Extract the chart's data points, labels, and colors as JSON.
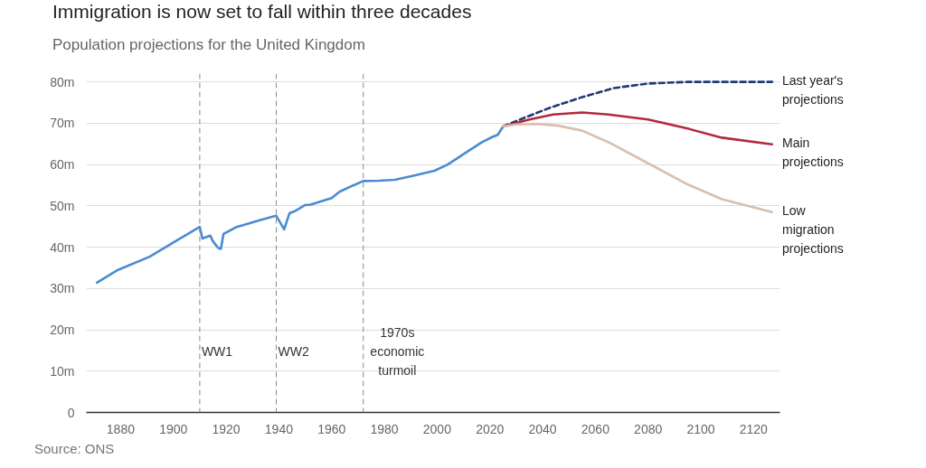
{
  "chart_data": {
    "type": "line",
    "title": "Immigration is now set to fall within three decades",
    "subtitle": "Population projections for the United Kingdom",
    "annotations": [
      "Source: ONS"
    ],
    "series": [
      {
        "color": "#4a8bd2",
        "x": [
          1871,
          1879,
          1891,
          1901,
          1910,
          1911,
          1914,
          1915,
          1917,
          1918,
          1919,
          1924,
          1929,
          1933,
          1939,
          1941,
          1942,
          1944,
          1946,
          1950,
          1952,
          1960,
          1963,
          1968,
          1972,
          1978,
          1984,
          1991,
          1999,
          2004,
          2010,
          2017,
          2021,
          2023,
          2025
        ],
        "values": [
          31.4,
          34.5,
          37.7,
          41.5,
          44.9,
          42.1,
          42.8,
          41.4,
          39.8,
          39.6,
          43.2,
          44.9,
          45.8,
          46.6,
          47.6,
          45.4,
          44.3,
          48.2,
          48.7,
          50.2,
          50.3,
          51.9,
          53.4,
          54.9,
          56.0,
          56.1,
          56.3,
          57.3,
          58.5,
          60.0,
          62.5,
          65.4,
          66.7,
          67.2,
          69.2
        ]
      },
      {
        "name": "Last year's projections",
        "color": "#1e3a78",
        "line_style": "dashed",
        "x": [
          2025,
          2033,
          2043,
          2055,
          2067,
          2080,
          2095,
          2127
        ],
        "values": [
          69.2,
          71.3,
          73.8,
          76.3,
          78.5,
          79.6,
          80.0,
          80.0
        ]
      },
      {
        "name": "Main projections",
        "color": "#b32a3c",
        "x": [
          2025,
          2035,
          2044,
          2055,
          2065,
          2080,
          2095,
          2108,
          2127
        ],
        "values": [
          69.2,
          70.9,
          72.1,
          72.6,
          72.1,
          70.9,
          68.7,
          66.5,
          64.9
        ]
      },
      {
        "name": "Low migration projections",
        "color": "#d9bfae",
        "x": [
          2025,
          2030,
          2038,
          2046,
          2055,
          2066,
          2080,
          2095,
          2108,
          2127
        ],
        "values": [
          69.2,
          69.7,
          69.8,
          69.4,
          68.2,
          65.1,
          60.3,
          55.2,
          51.6,
          48.5
        ]
      }
    ],
    "xlim": [
      1867,
      2130
    ],
    "xticks": [
      1880,
      1900,
      1920,
      1940,
      1960,
      1980,
      2000,
      2020,
      2040,
      2060,
      2080,
      2100,
      2120
    ],
    "ylim": [
      0,
      82
    ],
    "yticks": [
      0,
      {
        "value": 10,
        "label": "10m"
      },
      {
        "value": 20,
        "label": "20m"
      },
      {
        "value": 30,
        "label": "30m"
      },
      {
        "value": 40,
        "label": "40m"
      },
      {
        "value": 50,
        "label": "50m"
      },
      {
        "value": 60,
        "label": "60m"
      },
      {
        "value": 70,
        "label": "70m"
      },
      {
        "value": 80,
        "label": "80m"
      }
    ],
    "grid": "y",
    "legend": false,
    "ref_lines": [
      {
        "axis": "x",
        "value": 1910,
        "label": "WW1",
        "color": "#888888",
        "line_style": "dashed"
      },
      {
        "axis": "x",
        "value": 1939,
        "label": "WW2",
        "color": "#888888",
        "line_style": "dashed"
      },
      {
        "axis": "x",
        "value": 1972,
        "label": "1970s economic turmoil",
        "color": "#888888",
        "line_style": "dashed"
      }
    ]
  }
}
